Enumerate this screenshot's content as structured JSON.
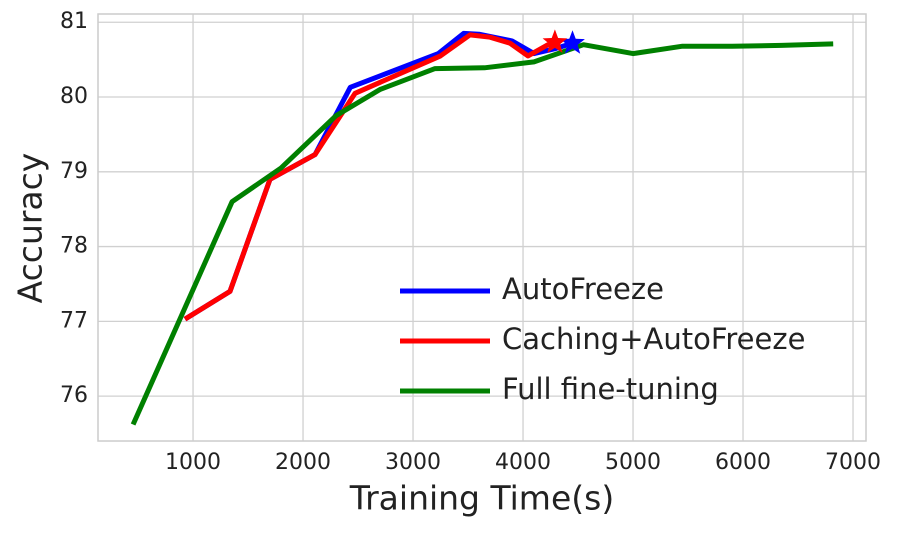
{
  "chart_data": {
    "type": "line",
    "x_label": "Training Time(s)",
    "y_label": "Accuracy",
    "xlim": [
      136,
      7118
    ],
    "ylim": [
      75.4,
      81.11
    ],
    "xticks": [
      1000,
      2000,
      3000,
      4000,
      5000,
      6000,
      7000
    ],
    "yticks": [
      76,
      77,
      78,
      79,
      80,
      81
    ],
    "grid": true,
    "legend": "lower right",
    "series": [
      {
        "name": "AutoFreeze",
        "color": "#0000ff",
        "end_marker": "star",
        "x": [
          927,
          1336,
          1700,
          2109,
          2430,
          3230,
          3460,
          3600,
          3900,
          4100,
          4300,
          4450
        ],
        "values": [
          77.03,
          77.4,
          78.9,
          79.23,
          80.13,
          80.58,
          80.85,
          80.84,
          80.75,
          80.58,
          80.65,
          80.72
        ]
      },
      {
        "name": "Caching+AutoFreeze",
        "color": "#ff0000",
        "end_marker": "star",
        "x": [
          927,
          1336,
          1700,
          2109,
          2473,
          3250,
          3518,
          3700,
          3882,
          4045,
          4227,
          4290
        ],
        "values": [
          77.03,
          77.4,
          78.9,
          79.23,
          80.05,
          80.55,
          80.83,
          80.8,
          80.72,
          80.55,
          80.7,
          80.73
        ]
      },
      {
        "name": "Full fine-tuning",
        "color": "#008000",
        "x": [
          455,
          1355,
          1800,
          2300,
          2700,
          3200,
          3650,
          4100,
          4550,
          5000,
          5450,
          5900,
          6350,
          6820
        ],
        "values": [
          75.62,
          78.6,
          79.05,
          79.75,
          80.1,
          80.38,
          80.39,
          80.47,
          80.7,
          80.58,
          80.68,
          80.68,
          80.69,
          80.71
        ]
      }
    ]
  }
}
